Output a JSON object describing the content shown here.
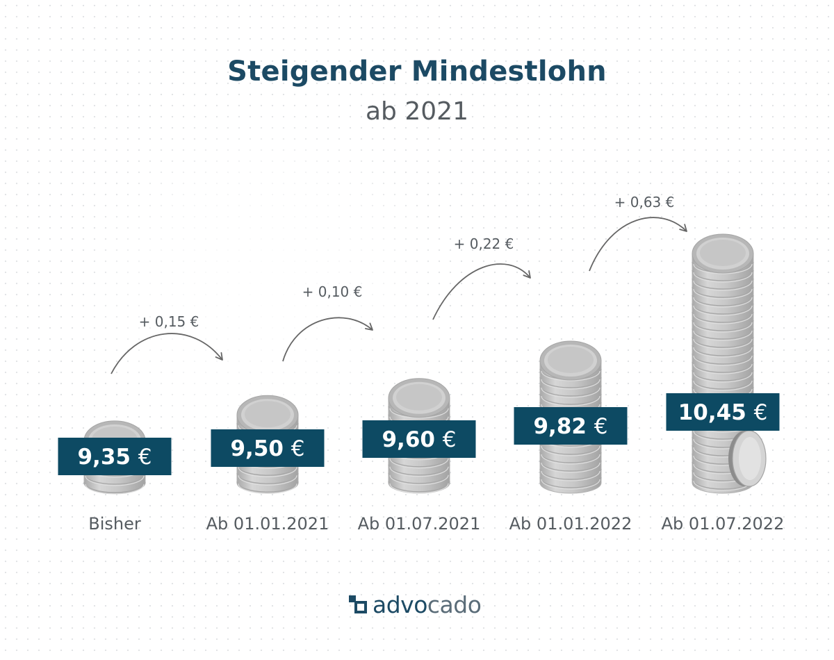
{
  "header": {
    "title": "Steigender Mindestlohn",
    "subtitle": "ab 2021"
  },
  "chart_data": {
    "type": "bar",
    "categories": [
      "Bisher",
      "Ab 01.01.2021",
      "Ab 01.07.2021",
      "Ab 01.01.2022",
      "Ab 01.07.2022"
    ],
    "values": [
      9.35,
      9.5,
      9.6,
      9.82,
      10.45
    ],
    "value_labels": [
      "9,35",
      "9,50",
      "9,60",
      "9,82",
      "10,45"
    ],
    "currency": "€",
    "increments": [
      "+ 0,15 €",
      "+ 0,10 €",
      "+ 0,22 €",
      "+ 0,63 €"
    ],
    "xlabel": "",
    "ylabel": "",
    "grid": false,
    "colors": {
      "label_box": "#0d4a63",
      "title": "#1c4a64",
      "coin": "#c9c9c9",
      "text": "#555b60",
      "arrow": "#666666"
    }
  },
  "brand": {
    "logo_main": "advo",
    "logo_light": "cado"
  }
}
